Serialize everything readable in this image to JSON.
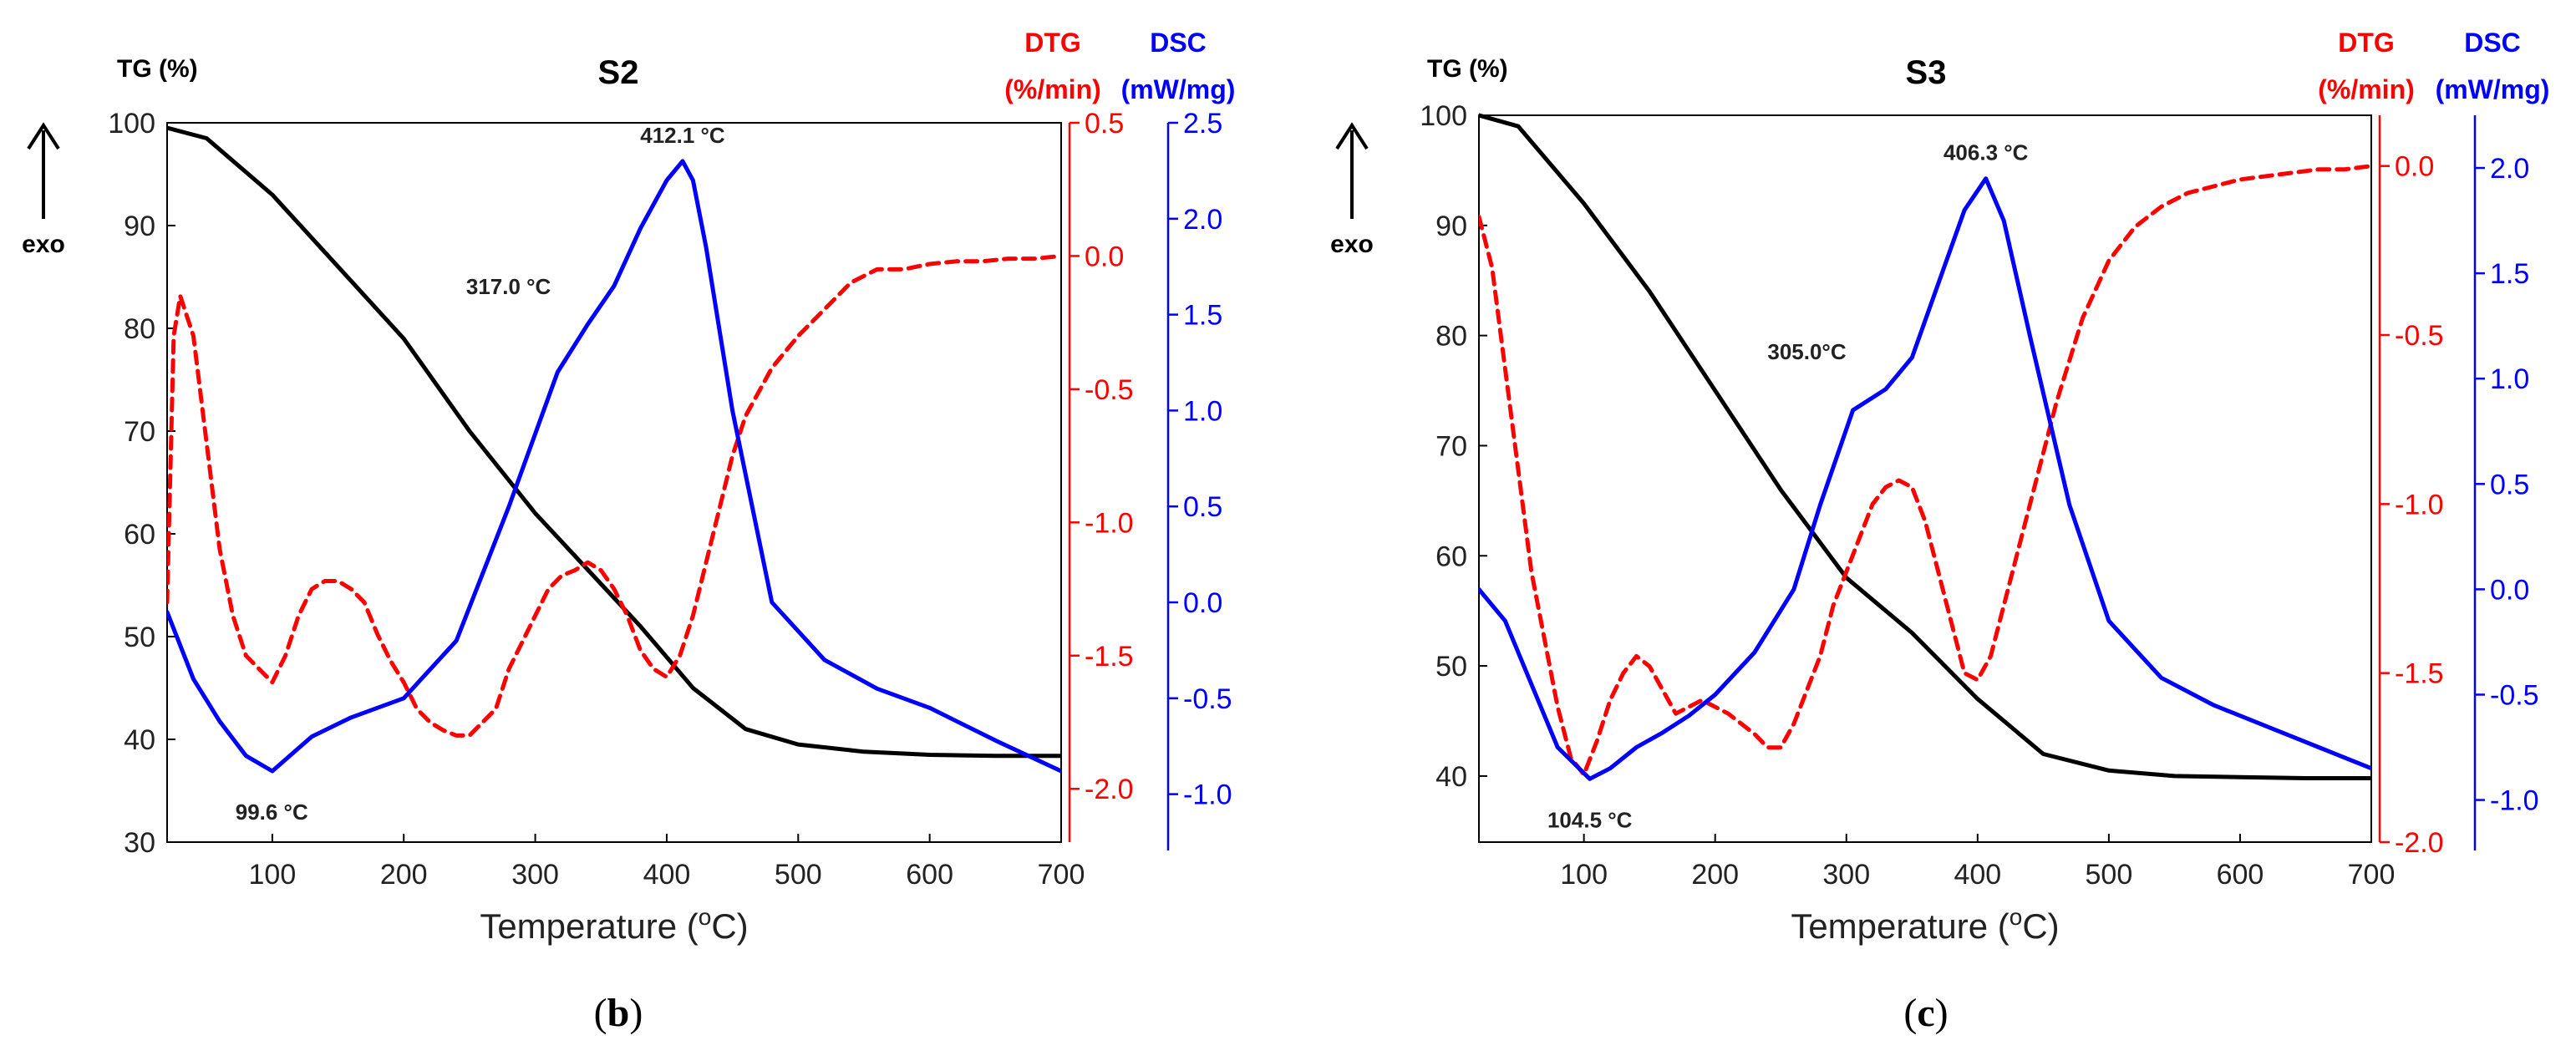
{
  "chart_data": [
    {
      "id": "b",
      "type": "line",
      "title": "S2",
      "caption_letter": "b",
      "xlabel": "Temperature (",
      "xlabel_sup": "o",
      "xlabel_unit": "C)",
      "xlim": [
        20,
        700
      ],
      "x_ticks": [
        100,
        200,
        300,
        400,
        500,
        600,
        700
      ],
      "exo_label": "exo",
      "axes": {
        "tg": {
          "label": "TG (%)",
          "ylim": [
            30,
            100
          ],
          "ticks": [
            30,
            40,
            50,
            60,
            70,
            80,
            90,
            100
          ],
          "tick_labels": [
            "30",
            "40",
            "50",
            "60",
            "70",
            "80",
            "90",
            "100"
          ],
          "color": "#000000"
        },
        "dtg": {
          "label_top": "DTG",
          "label_unit": "(%/min)",
          "ylim": [
            -2.2,
            0.5
          ],
          "ticks": [
            -2.0,
            -1.5,
            -1.0,
            -0.5,
            0.0,
            0.5
          ],
          "tick_labels": [
            "-2.0",
            "-1.5",
            "-1.0",
            "-0.5",
            "0.0",
            "0.5"
          ],
          "color": "#ff0000"
        },
        "dsc": {
          "label_top": "DSC",
          "label_unit": "(mW/mg)",
          "ylim": [
            -1.25,
            2.5
          ],
          "ticks": [
            -1.0,
            -0.5,
            0.0,
            0.5,
            1.0,
            1.5,
            2.0,
            2.5
          ],
          "tick_labels": [
            "-1.0",
            "-0.5",
            "0.0",
            "0.5",
            "1.0",
            "1.5",
            "2.0",
            "2.5"
          ],
          "color": "#0000ff"
        }
      },
      "series": [
        {
          "name": "TG",
          "axis": "tg",
          "style": "solid",
          "color": "#000000",
          "x": [
            20,
            50,
            100,
            150,
            200,
            250,
            300,
            340,
            380,
            420,
            460,
            500,
            550,
            600,
            650,
            700
          ],
          "y": [
            99.5,
            98.5,
            93,
            86,
            79,
            70,
            62,
            56.5,
            51,
            45,
            41,
            39.5,
            38.8,
            38.5,
            38.4,
            38.4
          ]
        },
        {
          "name": "DTG",
          "axis": "dtg",
          "style": "dashed",
          "color": "#ff0000",
          "x": [
            20,
            25,
            30,
            40,
            50,
            60,
            70,
            80,
            90,
            100,
            110,
            120,
            130,
            140,
            150,
            160,
            170,
            180,
            190,
            200,
            210,
            220,
            230,
            240,
            250,
            260,
            270,
            280,
            290,
            300,
            310,
            320,
            330,
            340,
            350,
            360,
            370,
            380,
            390,
            400,
            410,
            420,
            430,
            440,
            450,
            460,
            480,
            500,
            520,
            540,
            560,
            580,
            600,
            620,
            640,
            660,
            680,
            700
          ],
          "y": [
            -1.3,
            -0.3,
            -0.15,
            -0.3,
            -0.7,
            -1.1,
            -1.35,
            -1.5,
            -1.55,
            -1.6,
            -1.5,
            -1.35,
            -1.25,
            -1.22,
            -1.22,
            -1.25,
            -1.3,
            -1.42,
            -1.52,
            -1.6,
            -1.7,
            -1.75,
            -1.78,
            -1.8,
            -1.8,
            -1.75,
            -1.7,
            -1.55,
            -1.45,
            -1.35,
            -1.25,
            -1.2,
            -1.18,
            -1.15,
            -1.18,
            -1.25,
            -1.35,
            -1.48,
            -1.55,
            -1.58,
            -1.5,
            -1.35,
            -1.15,
            -0.95,
            -0.75,
            -0.6,
            -0.42,
            -0.3,
            -0.2,
            -0.1,
            -0.05,
            -0.05,
            -0.03,
            -0.02,
            -0.02,
            -0.01,
            -0.01,
            0.0
          ]
        },
        {
          "name": "DSC",
          "axis": "dsc",
          "style": "solid",
          "color": "#0000ff",
          "x": [
            20,
            40,
            60,
            80,
            100,
            110,
            130,
            160,
            200,
            240,
            280,
            317,
            340,
            360,
            380,
            400,
            412.1,
            420,
            430,
            450,
            480,
            520,
            560,
            600,
            650,
            700
          ],
          "y": [
            -0.05,
            -0.4,
            -0.62,
            -0.8,
            -0.88,
            -0.82,
            -0.7,
            -0.6,
            -0.5,
            -0.2,
            0.5,
            1.2,
            1.45,
            1.65,
            1.95,
            2.2,
            2.3,
            2.2,
            1.85,
            1.0,
            0.0,
            -0.3,
            -0.45,
            -0.55,
            -0.72,
            -0.88
          ]
        }
      ],
      "annotations": [
        {
          "text": "412.1 °C",
          "x": 412.1,
          "y": 2.3,
          "axis": "dsc"
        },
        {
          "text": "317.0 °C",
          "x": 317.0,
          "y": 1.45,
          "axis": "dsc"
        },
        {
          "text": "99.6 °C",
          "x": 99.6,
          "y": -0.88,
          "axis": "dsc"
        }
      ]
    },
    {
      "id": "c",
      "type": "line",
      "title": "S3",
      "caption_letter": "c",
      "xlabel": "Temperature (",
      "xlabel_sup": "o",
      "xlabel_unit": "C)",
      "xlim": [
        20,
        700
      ],
      "x_ticks": [
        100,
        200,
        300,
        400,
        500,
        600,
        700
      ],
      "exo_label": "exo",
      "axes": {
        "tg": {
          "label": "TG (%)",
          "ylim": [
            34,
            100
          ],
          "ticks": [
            40,
            50,
            60,
            70,
            80,
            90,
            100
          ],
          "tick_labels": [
            "40",
            "50",
            "60",
            "70",
            "80",
            "90",
            "100"
          ],
          "color": "#000000"
        },
        "dtg": {
          "label_top": "DTG",
          "label_unit": "(%/min)",
          "ylim": [
            -2.0,
            0.15
          ],
          "ticks": [
            -2.0,
            -1.5,
            -1.0,
            -0.5,
            0.0
          ],
          "tick_labels": [
            "-2.0",
            "-1.5",
            "-1.0",
            "-0.5",
            "0.0"
          ],
          "color": "#ff0000"
        },
        "dsc": {
          "label_top": "DSC",
          "label_unit": "(mW/mg)",
          "ylim": [
            -1.2,
            2.25
          ],
          "ticks": [
            -1.0,
            -0.5,
            0.0,
            0.5,
            1.0,
            1.5,
            2.0
          ],
          "tick_labels": [
            "-1.0",
            "-0.5",
            "0.0",
            "0.5",
            "1.0",
            "1.5",
            "2.0"
          ],
          "color": "#0000ff"
        }
      },
      "series": [
        {
          "name": "TG",
          "axis": "tg",
          "style": "solid",
          "color": "#000000",
          "x": [
            20,
            50,
            100,
            150,
            200,
            250,
            300,
            350,
            400,
            450,
            500,
            550,
            600,
            650,
            700
          ],
          "y": [
            100,
            99,
            92,
            84,
            75,
            66,
            58,
            53,
            47,
            42,
            40.5,
            40,
            39.9,
            39.8,
            39.8
          ]
        },
        {
          "name": "DTG",
          "axis": "dtg",
          "style": "dashed",
          "color": "#ff0000",
          "x": [
            20,
            30,
            40,
            50,
            60,
            70,
            80,
            90,
            100,
            110,
            120,
            130,
            140,
            150,
            160,
            170,
            180,
            190,
            200,
            210,
            220,
            230,
            240,
            250,
            260,
            270,
            280,
            290,
            300,
            310,
            320,
            330,
            340,
            350,
            360,
            370,
            380,
            390,
            400,
            410,
            420,
            440,
            460,
            480,
            500,
            520,
            540,
            560,
            580,
            600,
            620,
            640,
            660,
            680,
            700
          ],
          "y": [
            -0.15,
            -0.3,
            -0.6,
            -0.9,
            -1.2,
            -1.4,
            -1.6,
            -1.75,
            -1.8,
            -1.7,
            -1.58,
            -1.5,
            -1.45,
            -1.48,
            -1.55,
            -1.62,
            -1.6,
            -1.58,
            -1.6,
            -1.62,
            -1.65,
            -1.68,
            -1.72,
            -1.72,
            -1.65,
            -1.55,
            -1.45,
            -1.3,
            -1.2,
            -1.1,
            -1.0,
            -0.95,
            -0.93,
            -0.95,
            -1.05,
            -1.2,
            -1.35,
            -1.5,
            -1.52,
            -1.45,
            -1.3,
            -1.0,
            -0.7,
            -0.45,
            -0.28,
            -0.18,
            -0.12,
            -0.08,
            -0.06,
            -0.04,
            -0.03,
            -0.02,
            -0.01,
            -0.01,
            0.0
          ]
        },
        {
          "name": "DSC",
          "axis": "dsc",
          "style": "solid",
          "color": "#0000ff",
          "x": [
            20,
            40,
            60,
            80,
            104.5,
            120,
            140,
            160,
            180,
            200,
            230,
            260,
            280,
            305,
            330,
            350,
            370,
            390,
            406.3,
            420,
            440,
            470,
            500,
            540,
            580,
            620,
            660,
            700
          ],
          "y": [
            0.0,
            -0.15,
            -0.45,
            -0.75,
            -0.9,
            -0.85,
            -0.75,
            -0.68,
            -0.6,
            -0.5,
            -0.3,
            0.0,
            0.4,
            0.85,
            0.95,
            1.1,
            1.45,
            1.8,
            1.95,
            1.75,
            1.2,
            0.4,
            -0.15,
            -0.42,
            -0.55,
            -0.65,
            -0.75,
            -0.85
          ]
        }
      ],
      "annotations": [
        {
          "text": "406.3 °C",
          "x": 406.3,
          "y": 1.95,
          "axis": "dsc"
        },
        {
          "text": "305.0°C",
          "x": 305.0,
          "y": 0.95,
          "axis": "dsc"
        },
        {
          "text": "104.5 °C",
          "x": 104.5,
          "y": -0.9,
          "axis": "dsc"
        }
      ]
    }
  ]
}
